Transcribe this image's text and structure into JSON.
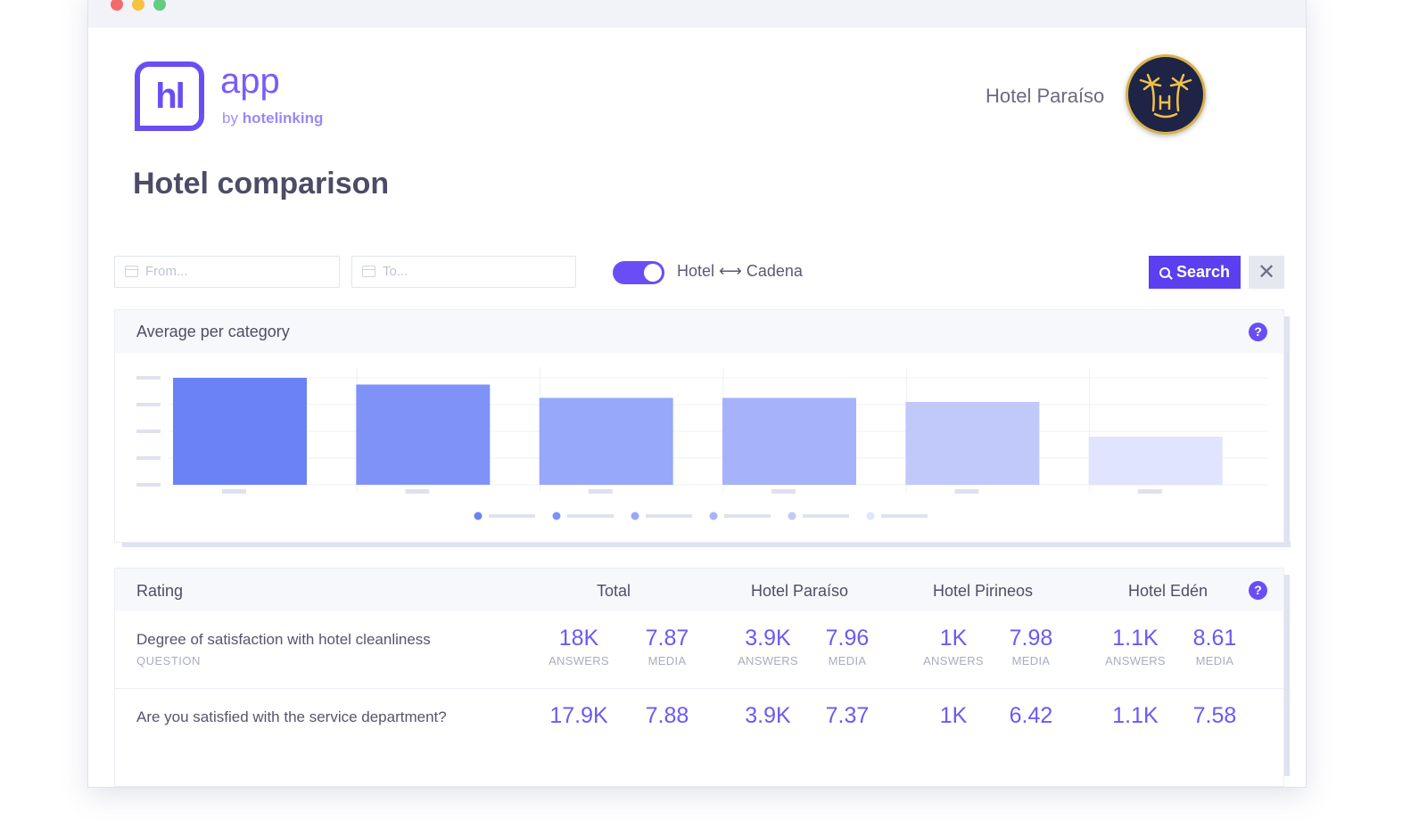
{
  "header": {
    "logo_text": "hl",
    "app_name": "app",
    "by_text": "by",
    "brand": "hotelinking",
    "hotel_name": "Hotel Paraíso"
  },
  "page": {
    "title": "Hotel comparison"
  },
  "filters": {
    "from_placeholder": "From...",
    "to_placeholder": "To...",
    "toggle_label": "Hotel ⟷ Cadena",
    "toggle_on": true,
    "search_label": "Search",
    "close_symbol": "✕"
  },
  "chart_panel": {
    "title": "Average per category",
    "help": "?"
  },
  "chart_data": {
    "type": "bar",
    "categories": [
      "",
      "",
      "",
      "",
      "",
      ""
    ],
    "values": [
      4.0,
      3.75,
      3.25,
      3.25,
      3.1,
      1.8
    ],
    "ylim": [
      0,
      4
    ],
    "grid": true,
    "legend_position": "bottom-center",
    "colors": [
      "#6b82f7",
      "#7f92f8",
      "#97a7f9",
      "#a6b2fa",
      "#c1c9fb",
      "#e0e4fd"
    ]
  },
  "table": {
    "help": "?",
    "headers": {
      "rating": "Rating",
      "total": "Total",
      "h1": "Hotel Paraíso",
      "h2": "Hotel Pirineos",
      "h3": "Hotel Edén"
    },
    "answers_label": "ANSWERS",
    "media_label": "MEDIA",
    "rows": [
      {
        "label": "Degree of satisfaction with hotel cleanliness",
        "sub": "QUESTION",
        "total_answers": "18K",
        "total_media": "7.87",
        "h1_answers": "3.9K",
        "h1_media": "7.96",
        "h2_answers": "1K",
        "h2_media": "7.98",
        "h3_answers": "1.1K",
        "h3_media": "8.61"
      },
      {
        "label": "Are you satisfied with the service department?",
        "total_answers": "17.9K",
        "total_media": "7.88",
        "h1_answers": "3.9K",
        "h1_media": "7.37",
        "h2_answers": "1K",
        "h2_media": "6.42",
        "h3_answers": "1.1K",
        "h3_media": "7.58"
      }
    ]
  }
}
